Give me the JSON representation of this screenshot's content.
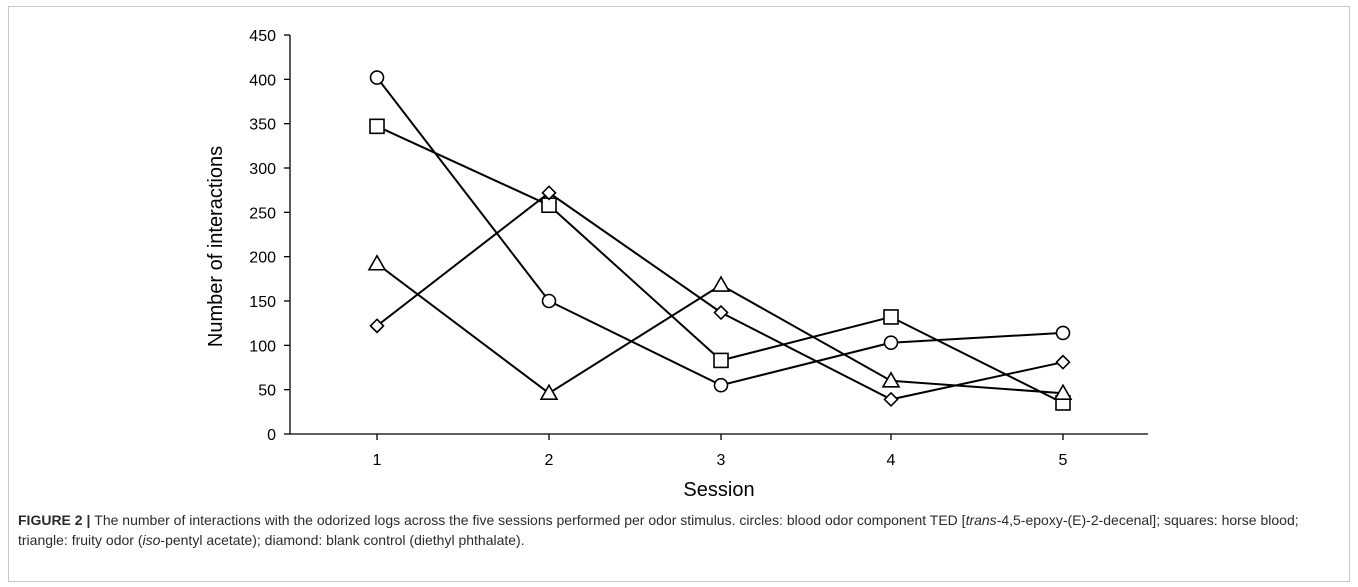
{
  "chart_data": {
    "type": "line",
    "xlabel": "Session",
    "ylabel": "Number of interactions",
    "categories": [
      1,
      2,
      3,
      4,
      5
    ],
    "ylim": [
      0,
      450
    ],
    "yticks": [
      0,
      50,
      100,
      150,
      200,
      250,
      300,
      350,
      400,
      450
    ],
    "grid": false,
    "series": [
      {
        "marker": "circle",
        "values": [
          402,
          150,
          55,
          103,
          114
        ]
      },
      {
        "marker": "square",
        "values": [
          347,
          258,
          83,
          132,
          35
        ]
      },
      {
        "marker": "triangle",
        "values": [
          192,
          46,
          168,
          60,
          46
        ]
      },
      {
        "marker": "diamond",
        "values": [
          122,
          272,
          137,
          39,
          81
        ]
      }
    ]
  },
  "caption": {
    "label": "FIGURE 2",
    "separator": " | ",
    "part1": "The number of interactions with the odorized logs across the five sessions performed per odor stimulus. circles: blood odor component TED [",
    "italic1": "trans",
    "part2": "-4,5-epoxy-(E)-2-decenal]; squares: horse blood; triangle: fruity odor (",
    "italic2": "iso",
    "part3": "-pentyl acetate); diamond: blank control (diethyl phthalate)."
  }
}
